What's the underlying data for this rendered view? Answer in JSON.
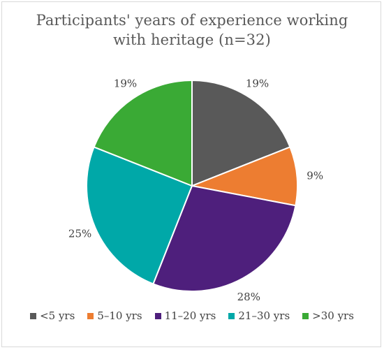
{
  "chart_data": {
    "type": "pie",
    "title": [
      "Participants' years of experience working",
      "with heritage (n=32)"
    ],
    "categories": [
      "<5 yrs",
      "5–10 yrs",
      "11–20 yrs",
      "21–30 yrs",
      ">30  yrs"
    ],
    "values": [
      19,
      9,
      28,
      25,
      19
    ],
    "labels": [
      "19%",
      "9%",
      "28%",
      "25%",
      "19%"
    ],
    "colors": [
      "#595959",
      "#ed7d31",
      "#4e1f7c",
      "#00a8a8",
      "#3aaa35"
    ],
    "start_angle_deg": 0,
    "direction": "clockwise",
    "legend_position": "bottom"
  }
}
